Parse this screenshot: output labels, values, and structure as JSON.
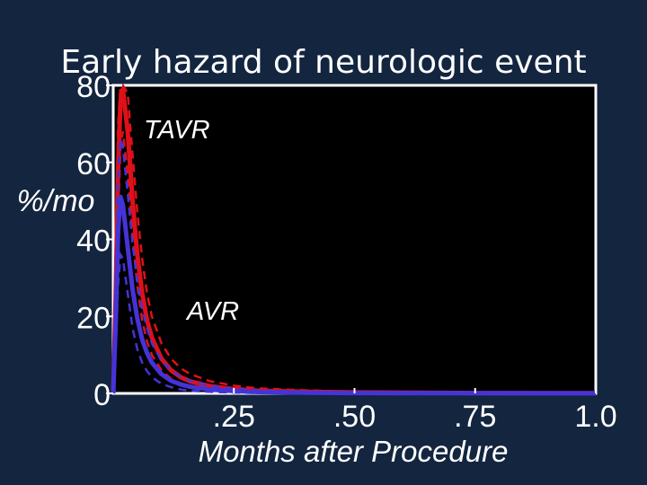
{
  "chart_data": {
    "type": "line",
    "title": "Early hazard of neurologic event",
    "xlabel": "Months after Procedure",
    "ylabel": "%/mo",
    "xlim": [
      0,
      1.0
    ],
    "ylim": [
      0,
      80
    ],
    "x_ticks": [
      ".25",
      ".50",
      ".75",
      "1.0"
    ],
    "y_ticks": [
      "0",
      "20",
      "40",
      "60",
      "80"
    ],
    "grid": false,
    "annotations": [
      {
        "text": "TAVR",
        "series": "TAVR"
      },
      {
        "text": "AVR",
        "series": "AVR"
      }
    ],
    "colors": {
      "background": "#13253f",
      "plot_area": "#000000",
      "axes": "#ffffff",
      "TAVR": "#e01018",
      "AVR": "#4434d8"
    },
    "series": [
      {
        "name": "TAVR",
        "x": [
          0.0,
          0.005,
          0.01,
          0.015,
          0.02,
          0.03,
          0.04,
          0.05,
          0.06,
          0.07,
          0.08,
          0.1,
          0.12,
          0.14,
          0.16,
          0.2,
          0.25,
          0.3,
          0.4,
          0.5,
          0.75,
          1.0
        ],
        "values": [
          0.0,
          25.0,
          58.0,
          76.0,
          79.0,
          68.0,
          50.0,
          36.0,
          26.0,
          19.0,
          14.5,
          9.0,
          6.0,
          4.2,
          3.1,
          1.9,
          1.1,
          0.7,
          0.4,
          0.25,
          0.1,
          0.05
        ],
        "ci_lower": [
          0.0,
          18.0,
          46.0,
          64.0,
          68.0,
          57.0,
          41.0,
          28.0,
          19.0,
          13.5,
          10.0,
          6.0,
          3.8,
          2.6,
          1.8,
          1.0,
          0.5,
          0.3,
          0.15,
          0.1,
          0.03,
          0.01
        ],
        "ci_upper": [
          0.0,
          33.0,
          70.0,
          80.0,
          80.0,
          78.0,
          62.0,
          47.0,
          35.0,
          26.0,
          20.0,
          13.0,
          9.0,
          6.5,
          5.0,
          3.2,
          2.0,
          1.3,
          0.8,
          0.5,
          0.22,
          0.12
        ]
      },
      {
        "name": "AVR",
        "x": [
          0.0,
          0.005,
          0.01,
          0.015,
          0.02,
          0.03,
          0.04,
          0.05,
          0.06,
          0.07,
          0.08,
          0.1,
          0.12,
          0.14,
          0.16,
          0.2,
          0.25,
          0.3,
          0.4,
          0.5,
          0.75,
          1.0
        ],
        "values": [
          0.0,
          18.0,
          42.0,
          51.0,
          49.0,
          38.0,
          27.0,
          19.5,
          14.0,
          10.5,
          8.0,
          5.0,
          3.3,
          2.3,
          1.7,
          1.0,
          0.6,
          0.35,
          0.18,
          0.1,
          0.04,
          0.02
        ],
        "ci_lower": [
          0.0,
          11.0,
          28.0,
          36.0,
          35.0,
          26.0,
          17.0,
          11.5,
          8.0,
          5.8,
          4.2,
          2.5,
          1.6,
          1.0,
          0.7,
          0.4,
          0.2,
          0.1,
          0.05,
          0.03,
          0.01,
          0.0
        ],
        "ci_upper": [
          0.0,
          26.0,
          56.0,
          66.0,
          64.0,
          52.0,
          39.0,
          29.0,
          22.0,
          17.0,
          13.0,
          8.5,
          6.0,
          4.3,
          3.2,
          2.0,
          1.2,
          0.8,
          0.4,
          0.25,
          0.1,
          0.05
        ]
      }
    ]
  }
}
